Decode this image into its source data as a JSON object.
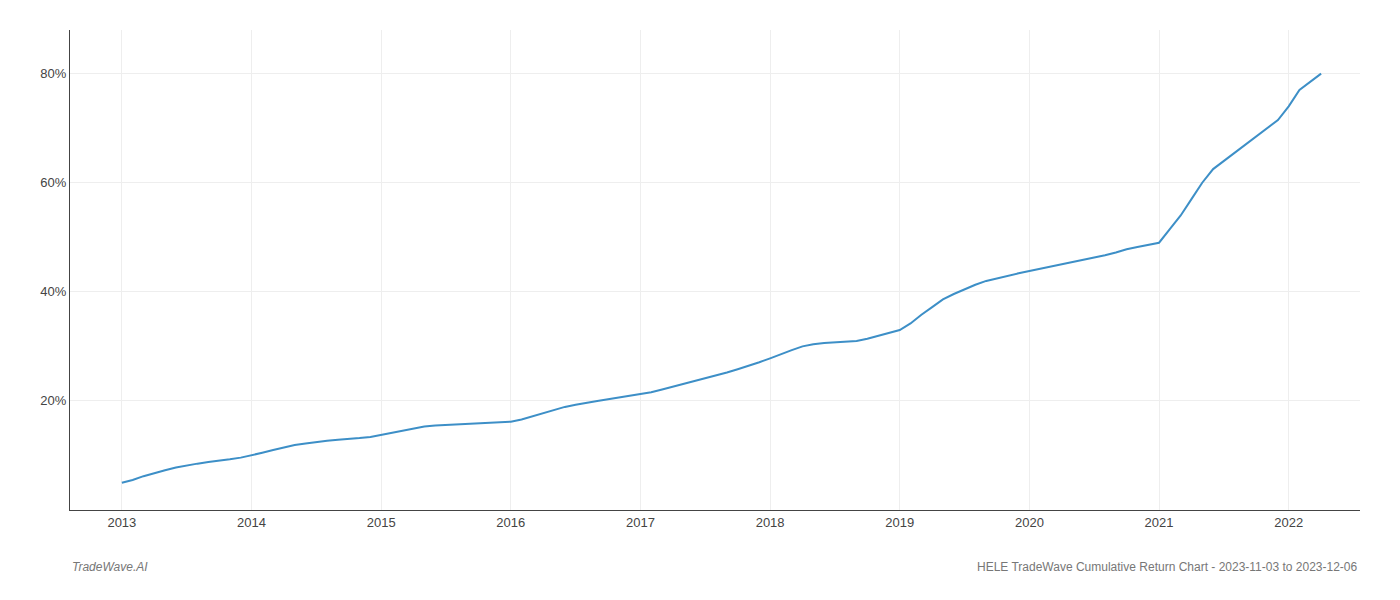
{
  "chart_data": {
    "type": "line",
    "x": [
      2013.0,
      2013.083,
      2013.167,
      2013.25,
      2013.333,
      2013.417,
      2013.5,
      2013.583,
      2013.667,
      2013.75,
      2013.833,
      2013.917,
      2014.0,
      2014.083,
      2014.167,
      2014.25,
      2014.333,
      2014.417,
      2014.5,
      2014.583,
      2014.667,
      2014.75,
      2014.833,
      2014.917,
      2015.0,
      2015.083,
      2015.167,
      2015.25,
      2015.333,
      2015.417,
      2015.5,
      2015.583,
      2015.667,
      2015.75,
      2015.833,
      2015.917,
      2016.0,
      2016.083,
      2016.167,
      2016.25,
      2016.333,
      2016.417,
      2016.5,
      2016.583,
      2016.667,
      2016.75,
      2016.833,
      2016.917,
      2017.0,
      2017.083,
      2017.167,
      2017.25,
      2017.333,
      2017.417,
      2017.5,
      2017.583,
      2017.667,
      2017.75,
      2017.833,
      2017.917,
      2018.0,
      2018.083,
      2018.167,
      2018.25,
      2018.333,
      2018.417,
      2018.5,
      2018.583,
      2018.667,
      2018.75,
      2018.833,
      2018.917,
      2019.0,
      2019.083,
      2019.167,
      2019.25,
      2019.333,
      2019.417,
      2019.5,
      2019.583,
      2019.667,
      2019.75,
      2019.833,
      2019.917,
      2020.0,
      2020.083,
      2020.167,
      2020.25,
      2020.333,
      2020.417,
      2020.5,
      2020.583,
      2020.667,
      2020.75,
      2020.833,
      2020.917,
      2021.0,
      2021.083,
      2021.167,
      2021.25,
      2021.333,
      2021.417,
      2021.5,
      2021.583,
      2021.667,
      2021.75,
      2021.833,
      2021.917,
      2022.0,
      2022.083,
      2022.25
    ],
    "values": [
      5.0,
      5.5,
      6.2,
      6.8,
      7.3,
      7.8,
      8.2,
      8.5,
      8.8,
      9.0,
      9.3,
      9.6,
      10.0,
      10.5,
      11.0,
      11.5,
      11.9,
      12.2,
      12.5,
      12.7,
      12.9,
      13.0,
      13.2,
      13.4,
      13.8,
      14.2,
      14.6,
      15.0,
      15.3,
      15.5,
      15.6,
      15.7,
      15.8,
      15.85,
      15.9,
      16.0,
      16.2,
      16.6,
      17.2,
      17.8,
      18.4,
      18.9,
      19.3,
      19.7,
      20.0,
      20.3,
      20.6,
      20.9,
      21.2,
      21.6,
      22.1,
      22.6,
      23.2,
      23.7,
      24.2,
      24.7,
      25.2,
      25.8,
      26.4,
      27.1,
      27.8,
      28.6,
      29.3,
      30.0,
      30.4,
      30.6,
      30.7,
      30.8,
      31.0,
      31.4,
      31.9,
      32.4,
      33.0,
      34.2,
      35.8,
      37.2,
      38.6,
      39.6,
      40.5,
      41.3,
      42.0,
      42.5,
      43.0,
      43.4,
      43.8,
      44.2,
      44.6,
      45.0,
      45.4,
      45.8,
      46.2,
      46.7,
      47.2,
      47.8,
      48.2,
      48.6,
      49.0,
      51.5,
      54.0,
      57.0,
      60.0,
      62.5,
      64.0,
      65.5,
      67.0,
      68.5,
      70.0,
      71.5,
      74.0,
      77.0,
      80.0
    ],
    "color": "#3d8fc7",
    "xlim": [
      2012.6,
      2022.55
    ],
    "xticks": [
      2013,
      2014,
      2015,
      2016,
      2017,
      2018,
      2019,
      2020,
      2021,
      2022
    ],
    "ylim": [
      0,
      88
    ],
    "yticks": [
      {
        "value": 20,
        "label": "20%"
      },
      {
        "value": 40,
        "label": "40%"
      },
      {
        "value": 60,
        "label": "60%"
      },
      {
        "value": 80,
        "label": "80%"
      }
    ],
    "grid": true,
    "annotations": [
      "TradeWave.AI",
      "HELE TradeWave Cumulative Return Chart - 2023-11-03 to 2023-12-06"
    ]
  }
}
